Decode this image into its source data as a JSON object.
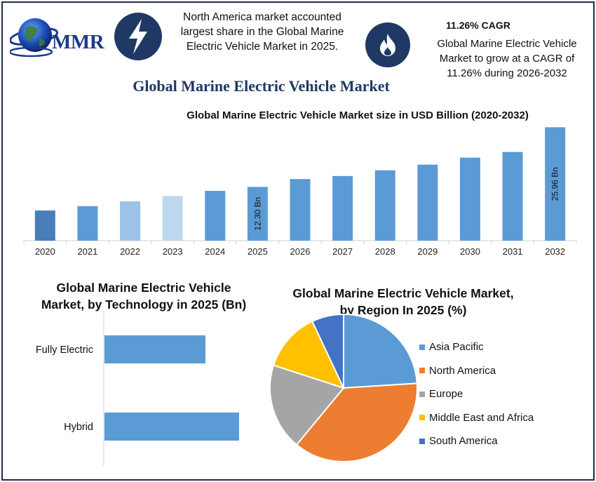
{
  "header": {
    "logo_text": "MMR",
    "info_left": [
      "North America market accounted",
      "largest share in the Global Marine",
      "Electric Vehicle Market in 2025."
    ],
    "cagr_title": "11.26% CAGR",
    "info_right": [
      "Global Marine Electric Vehicle",
      "Market to grow at a CAGR of",
      "11.26% during 2026-2032"
    ],
    "icons": [
      "lightning-icon",
      "flame-icon"
    ]
  },
  "main_title": "Global Marine Electric Vehicle Market",
  "chart_data": [
    {
      "type": "bar",
      "title": "Global Marine Electric Vehicle Market size in USD Billion (2020-2032)",
      "categories": [
        "2020",
        "2021",
        "2022",
        "2023",
        "2024",
        "2025",
        "2026",
        "2027",
        "2028",
        "2029",
        "2030",
        "2031",
        "2032"
      ],
      "values": [
        6.9,
        7.9,
        9.0,
        10.2,
        11.4,
        12.3,
        14.1,
        14.8,
        16.1,
        17.4,
        19.0,
        20.3,
        25.96
      ],
      "data_labels": {
        "2025": "12.30 Bn",
        "2032": "25.96 Bn"
      },
      "colors": [
        "#4a7ebb",
        "#5b9bd5",
        "#9dc3e6",
        "#bdd7ee",
        "#5b9bd5",
        "#5b9bd5",
        "#5b9bd5",
        "#5b9bd5",
        "#5b9bd5",
        "#5b9bd5",
        "#5b9bd5",
        "#5b9bd5",
        "#5b9bd5"
      ],
      "ylim": [
        0,
        26.5
      ]
    },
    {
      "type": "bar",
      "orientation": "horizontal",
      "title": [
        "Global Marine Electric Vehicle",
        "Market, by Technology in 2025 (Bn)"
      ],
      "categories": [
        "Fully Electric",
        "Hybrid"
      ],
      "values": [
        5.4,
        7.2
      ],
      "xlim": [
        0,
        9
      ],
      "color": "#5b9bd5"
    },
    {
      "type": "pie",
      "title": [
        "Global Marine Electric Vehicle Market,",
        "by Region In 2025 (%)"
      ],
      "labels": [
        "Asia Pacific",
        "North America",
        "Europe",
        "Middle East and Africa",
        "South America"
      ],
      "values": [
        24,
        37,
        19,
        13,
        7
      ],
      "colors": [
        "#5b9bd5",
        "#ed7d31",
        "#a5a5a5",
        "#ffc000",
        "#4472c4"
      ],
      "legend_position": "right"
    }
  ]
}
